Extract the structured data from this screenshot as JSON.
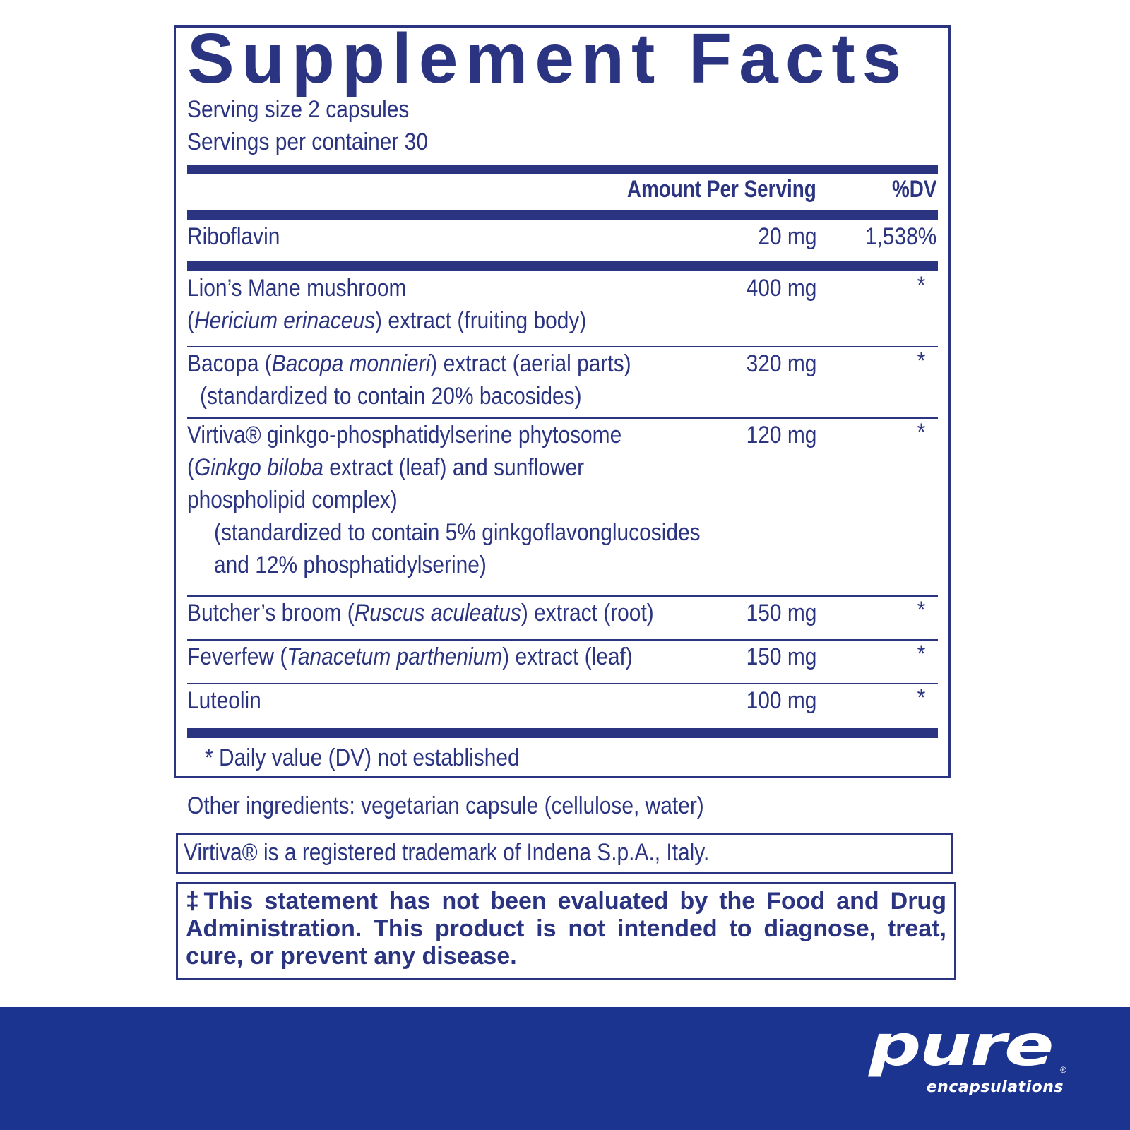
{
  "label": {
    "title": "Supplement Facts",
    "serving_size": "Serving size  2 capsules",
    "servings_per_container": "Servings per container  30",
    "header": {
      "amount": "Amount Per Serving",
      "dv": "%DV"
    },
    "riboflavin": {
      "name": "Riboflavin",
      "amount": "20 mg",
      "dv": "1,538%"
    },
    "ingredients": [
      {
        "lines": [
          "Lion’s Mane mushroom",
          "(|Hericium erinaceus|) extract (fruiting body)"
        ],
        "amount": "400 mg",
        "dv": "*"
      },
      {
        "lines": [
          "Bacopa (|Bacopa monnieri|) extract (aerial parts)",
          "  (standardized to contain 20% bacosides)"
        ],
        "amount": "320 mg",
        "dv": "*"
      },
      {
        "lines": [
          "Virtiva® ginkgo-phosphatidylserine phytosome",
          "(|Ginkgo biloba| extract (leaf) and sunflower",
          "phospholipid complex)",
          "   (standardized to contain 5% ginkgoflavonglucosides",
          "   and 12% phosphatidylserine)"
        ],
        "amount": "120 mg",
        "dv": "*"
      },
      {
        "lines": [
          "Butcher’s broom (|Ruscus aculeatus|) extract (root)"
        ],
        "amount": "150 mg",
        "dv": "*"
      },
      {
        "lines": [
          "Feverfew (|Tanacetum parthenium|) extract (leaf)"
        ],
        "amount": "150 mg",
        "dv": "*"
      },
      {
        "lines": [
          "Luteolin"
        ],
        "amount": "100 mg",
        "dv": "*"
      }
    ],
    "footnote": "* Daily value (DV) not established"
  },
  "other_ingredients": "Other ingredients: vegetarian capsule (cellulose, water)",
  "trademark": "Virtiva® is a registered trademark of Indena S.p.A., Italy.",
  "statement": "‡This statement has not been evaluated by the Food and Drug Administration. This product is not intended to diagnose, treat, cure, or prevent any disease.",
  "brand": {
    "logo_primary": "pure",
    "logo_secondary": "encapsulations",
    "registered": "®"
  },
  "colors": {
    "ink": "#2b3481",
    "footer": "#1b3490"
  }
}
